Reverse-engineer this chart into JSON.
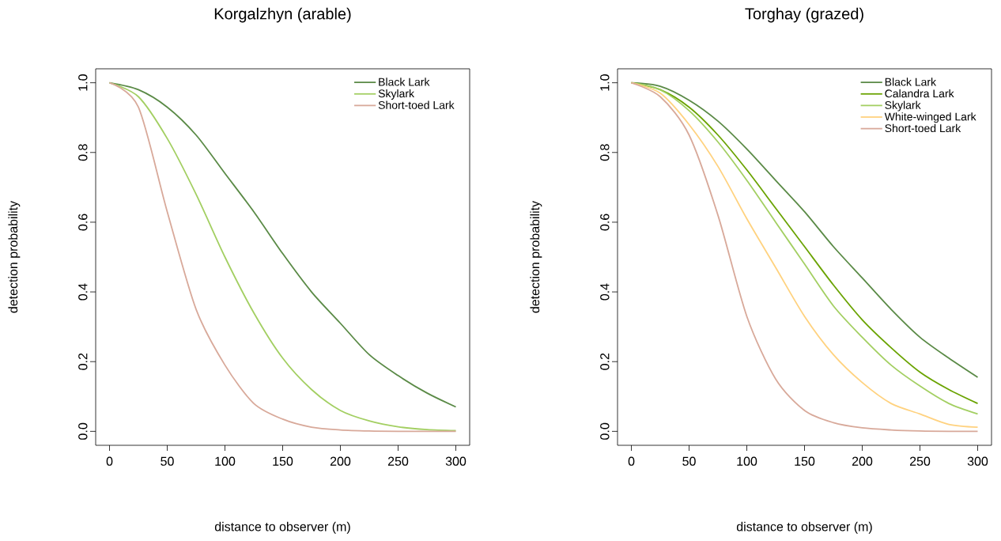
{
  "chart_data": [
    {
      "type": "line",
      "title": "Korgalzhyn (arable)",
      "xlabel": "distance to observer (m)",
      "ylabel": "detection probability",
      "legend": "top right",
      "xlim": [
        -12,
        312
      ],
      "ylim": [
        -0.04,
        1.04
      ],
      "xticks": [
        0,
        50,
        100,
        150,
        200,
        250,
        300
      ],
      "yticks": [
        {
          "value": 0,
          "label": "0.0"
        },
        {
          "value": 0.2,
          "label": "0.2"
        },
        {
          "value": 0.4,
          "label": "0.4"
        },
        {
          "value": 0.6,
          "label": "0.6"
        },
        {
          "value": 0.8,
          "label": "0.8"
        },
        {
          "value": 1.0,
          "label": "1.0"
        }
      ],
      "x": [
        0,
        25,
        50,
        75,
        100,
        125,
        150,
        175,
        200,
        225,
        250,
        275,
        300
      ],
      "series": [
        {
          "name": "Black Lark",
          "color": "#5a8a46",
          "values": [
            1,
            0.98,
            0.93,
            0.85,
            0.74,
            0.63,
            0.51,
            0.4,
            0.31,
            0.22,
            0.16,
            0.11,
            0.07
          ]
        },
        {
          "name": "Skylark",
          "color": "#a3cf62",
          "values": [
            1,
            0.96,
            0.84,
            0.68,
            0.5,
            0.34,
            0.21,
            0.12,
            0.06,
            0.03,
            0.013,
            0.005,
            0.002
          ]
        },
        {
          "name": "Short-toed Lark",
          "color": "#d8a99a",
          "values": [
            1,
            0.93,
            0.63,
            0.35,
            0.19,
            0.08,
            0.035,
            0.012,
            0.004,
            0.001,
            0,
            0,
            0
          ]
        }
      ]
    },
    {
      "type": "line",
      "title": "Torghay (grazed)",
      "xlabel": "distance to observer (m)",
      "ylabel": "detection probability",
      "legend": "top right",
      "xlim": [
        -12,
        312
      ],
      "ylim": [
        -0.04,
        1.04
      ],
      "xticks": [
        0,
        50,
        100,
        150,
        200,
        250,
        300
      ],
      "yticks": [
        {
          "value": 0,
          "label": "0.0"
        },
        {
          "value": 0.2,
          "label": "0.2"
        },
        {
          "value": 0.4,
          "label": "0.4"
        },
        {
          "value": 0.6,
          "label": "0.6"
        },
        {
          "value": 0.8,
          "label": "0.8"
        },
        {
          "value": 1.0,
          "label": "1.0"
        }
      ],
      "x": [
        0,
        25,
        50,
        75,
        100,
        125,
        150,
        175,
        200,
        225,
        250,
        275,
        300
      ],
      "series": [
        {
          "name": "Black Lark",
          "color": "#5a8a46",
          "values": [
            1,
            0.99,
            0.95,
            0.89,
            0.81,
            0.72,
            0.63,
            0.53,
            0.44,
            0.35,
            0.27,
            0.21,
            0.155
          ]
        },
        {
          "name": "Calandra Lark",
          "color": "#6aa300",
          "values": [
            1,
            0.98,
            0.93,
            0.85,
            0.75,
            0.64,
            0.53,
            0.42,
            0.32,
            0.24,
            0.17,
            0.12,
            0.08
          ]
        },
        {
          "name": "Skylark",
          "color": "#a3cf62",
          "values": [
            1,
            0.98,
            0.92,
            0.83,
            0.72,
            0.6,
            0.48,
            0.36,
            0.27,
            0.19,
            0.13,
            0.08,
            0.05
          ]
        },
        {
          "name": "White-winged Lark",
          "color": "#ffd27f",
          "values": [
            1,
            0.97,
            0.88,
            0.76,
            0.61,
            0.47,
            0.33,
            0.22,
            0.14,
            0.08,
            0.05,
            0.02,
            0.012
          ]
        },
        {
          "name": "Short-toed Lark",
          "color": "#d8a99a",
          "values": [
            1,
            0.96,
            0.85,
            0.62,
            0.33,
            0.15,
            0.06,
            0.025,
            0.01,
            0.004,
            0.001,
            0,
            0
          ]
        }
      ]
    }
  ]
}
